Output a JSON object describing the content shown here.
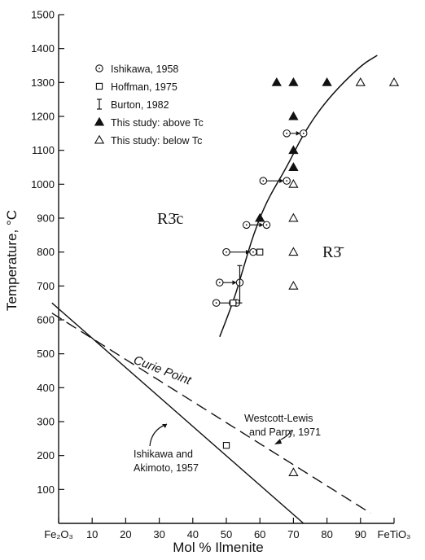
{
  "chart_data": {
    "type": "scatter",
    "title": "",
    "xlabel": "Mol % Ilmenite",
    "ylabel": "Temperature, °C",
    "xlim": [
      0,
      100
    ],
    "ylim": [
      0,
      1500
    ],
    "x_ticks": [
      {
        "value": 0,
        "label": "Fe₂O₃"
      },
      {
        "value": 10,
        "label": "10"
      },
      {
        "value": 20,
        "label": "20"
      },
      {
        "value": 30,
        "label": "30"
      },
      {
        "value": 40,
        "label": "40"
      },
      {
        "value": 50,
        "label": "50"
      },
      {
        "value": 60,
        "label": "60"
      },
      {
        "value": 70,
        "label": "70"
      },
      {
        "value": 80,
        "label": "80"
      },
      {
        "value": 90,
        "label": "90"
      },
      {
        "value": 100,
        "label": "FeTiO₃"
      }
    ],
    "y_ticks": [
      100,
      200,
      300,
      400,
      500,
      600,
      700,
      800,
      900,
      1000,
      1100,
      1200,
      1300,
      1400,
      1500
    ],
    "legend": [
      {
        "marker": "circle-open",
        "label": "Ishikawa, 1958"
      },
      {
        "marker": "square-open",
        "label": "Hoffman, 1975"
      },
      {
        "marker": "errorbar",
        "label": "Burton, 1982"
      },
      {
        "marker": "triangle-filled",
        "label": "This study: above Tc"
      },
      {
        "marker": "triangle-open",
        "label": "This study: below Tc"
      }
    ],
    "series": [
      {
        "name": "This study: above Tc",
        "marker": "triangle-filled",
        "points": [
          [
            65,
            1300
          ],
          [
            70,
            1300
          ],
          [
            80,
            1300
          ],
          [
            70,
            1200
          ],
          [
            70,
            1100
          ],
          [
            70,
            1050
          ],
          [
            60,
            900
          ]
        ]
      },
      {
        "name": "This study: below Tc",
        "marker": "triangle-open",
        "points": [
          [
            90,
            1300
          ],
          [
            100,
            1300
          ],
          [
            70,
            1000
          ],
          [
            70,
            900
          ],
          [
            70,
            800
          ],
          [
            70,
            700
          ],
          [
            70,
            150
          ]
        ]
      },
      {
        "name": "Hoffman, 1975",
        "marker": "square-open",
        "points": [
          [
            60,
            800
          ],
          [
            52,
            650
          ],
          [
            50,
            230
          ]
        ]
      },
      {
        "name": "Burton, 1982",
        "marker": "errorbar",
        "points": [
          [
            54,
            720,
            650,
            760
          ]
        ]
      }
    ],
    "ishikawa_1958_tie_lines": [
      {
        "from": [
          68,
          1150
        ],
        "to": [
          73,
          1150
        ]
      },
      {
        "from": [
          61,
          1010
        ],
        "to": [
          68,
          1010
        ]
      },
      {
        "from": [
          56,
          880
        ],
        "to": [
          62,
          880
        ]
      },
      {
        "from": [
          50,
          800
        ],
        "to": [
          58,
          800
        ]
      },
      {
        "from": [
          48,
          710
        ],
        "to": [
          54,
          710
        ]
      },
      {
        "from": [
          47,
          650
        ],
        "to": [
          53,
          650
        ]
      }
    ],
    "order_disorder_boundary": [
      [
        48,
        550
      ],
      [
        52,
        650
      ],
      [
        55,
        750
      ],
      [
        58,
        850
      ],
      [
        62,
        950
      ],
      [
        68,
        1050
      ],
      [
        73,
        1150
      ],
      [
        80,
        1250
      ],
      [
        90,
        1350
      ],
      [
        95,
        1380
      ]
    ],
    "curie_ishikawa_akimoto": [
      [
        -2,
        650
      ],
      [
        73,
        0
      ]
    ],
    "curie_westcott_lewis": [
      [
        -2,
        620
      ],
      [
        93,
        30
      ]
    ],
    "annotations": {
      "phase_disordered": "R3̄c",
      "phase_ordered": "R3̄",
      "curie_point": "Curie Point",
      "ishikawa_akimoto_line1": "Ishikawa and",
      "ishikawa_akimoto_line2": "Akimoto, 1957",
      "westcott_line1": "Westcott-Lewis",
      "westcott_line2": "and Parry, 1971"
    }
  }
}
